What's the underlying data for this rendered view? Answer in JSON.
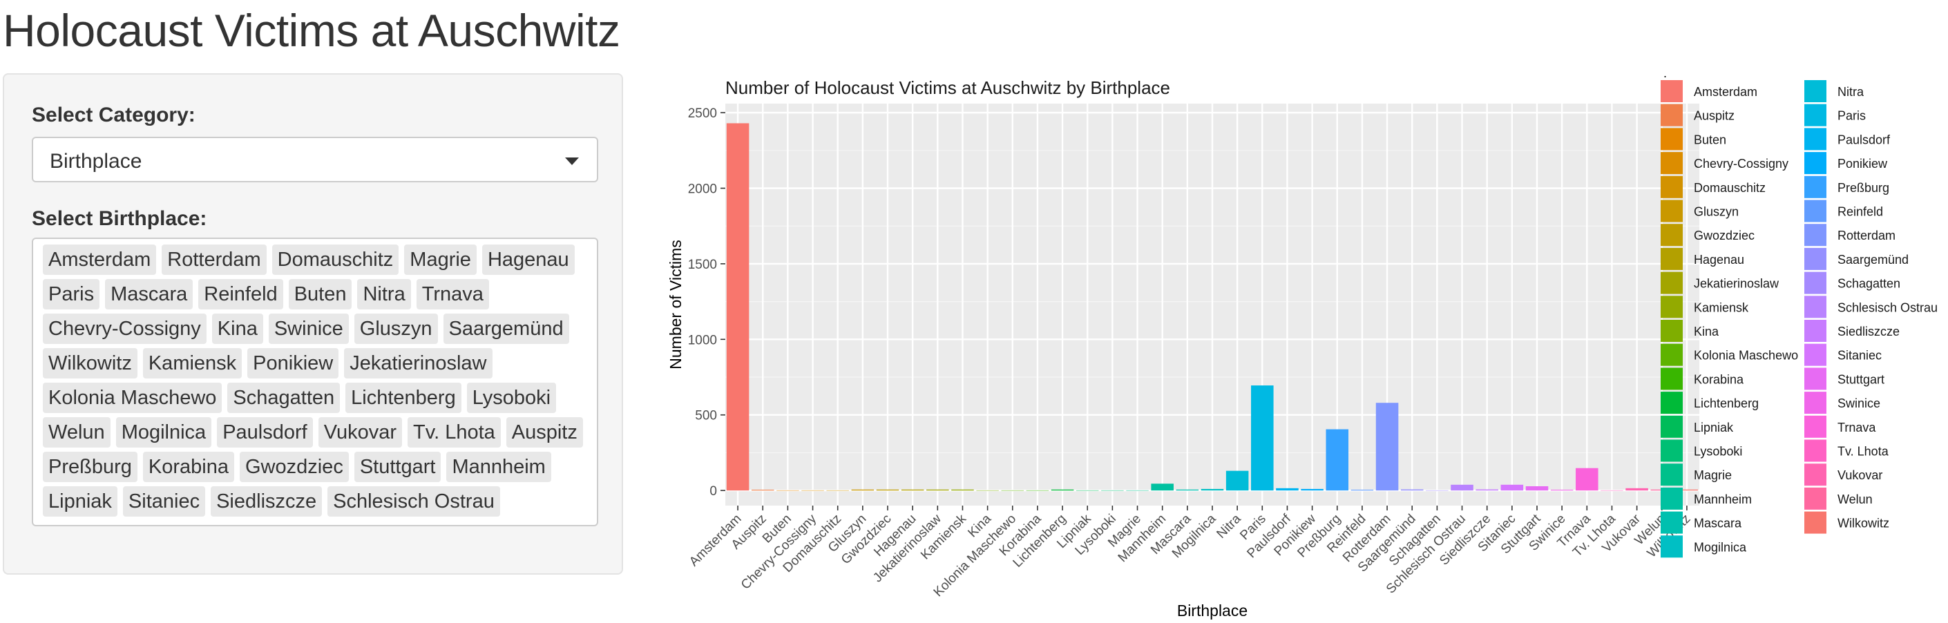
{
  "page": {
    "title": "Holocaust Victims at Auschwitz"
  },
  "sidebar": {
    "category_label": "Select Category:",
    "category_value": "Birthplace",
    "birthplace_label": "Select Birthplace:",
    "selected_birthplaces": [
      "Amsterdam",
      "Rotterdam",
      "Domauschitz",
      "Magrie",
      "Hagenau",
      "Paris",
      "Mascara",
      "Reinfeld",
      "Buten",
      "Nitra",
      "Trnava",
      "Chevry-Cossigny",
      "Kina",
      "Swinice",
      "Gluszyn",
      "Saargemünd",
      "Wilkowitz",
      "Kamiensk",
      "Ponikiew",
      "Jekatierinoslaw",
      "Kolonia Maschewo",
      "Schagatten",
      "Lichtenberg",
      "Lysoboki",
      "Welun",
      "Mogilnica",
      "Paulsdorf",
      "Vukovar",
      "Tv. Lhota",
      "Auspitz",
      "Preßburg",
      "Korabina",
      "Gwozdziec",
      "Stuttgart",
      "Mannheim",
      "Lipniak",
      "Sitaniec",
      "Siedliszcze",
      "Schlesisch Ostrau"
    ]
  },
  "chart_data": {
    "type": "bar",
    "title": "Number of Holocaust Victims at Auschwitz by Birthplace",
    "xlabel": "Birthplace",
    "ylabel": "Number of Victims",
    "ylim": [
      -100,
      2560
    ],
    "yticks": [
      0,
      500,
      1000,
      1500,
      2000,
      2500
    ],
    "legend_title": ".",
    "legend_position": "right",
    "categories": [
      "Amsterdam",
      "Auspitz",
      "Buten",
      "Chevry-Cossigny",
      "Domauschitz",
      "Gluszyn",
      "Gwozdziec",
      "Hagenau",
      "Jekatierinoslaw",
      "Kamiensk",
      "Kina",
      "Kolonia Maschewo",
      "Korabina",
      "Lichtenberg",
      "Lipniak",
      "Lysoboki",
      "Magrie",
      "Mannheim",
      "Mascara",
      "Mogilnica",
      "Nitra",
      "Paris",
      "Paulsdorf",
      "Ponikiew",
      "Preßburg",
      "Reinfeld",
      "Rotterdam",
      "Saargemünd",
      "Schagatten",
      "Schlesisch Ostrau",
      "Siedliszcze",
      "Sitaniec",
      "Stuttgart",
      "Swinice",
      "Trnava",
      "Tv. Lhota",
      "Vukovar",
      "Welun",
      "Wilkowitz"
    ],
    "values": [
      2430,
      5,
      1,
      1,
      1,
      6,
      6,
      6,
      6,
      6,
      1,
      1,
      1,
      6,
      1,
      1,
      1,
      45,
      6,
      10,
      130,
      695,
      15,
      10,
      405,
      5,
      580,
      7,
      1,
      38,
      7,
      38,
      28,
      5,
      148,
      1,
      15,
      6,
      6
    ],
    "colors": [
      "#F8766D",
      "#F07F49",
      "#E58700",
      "#DC8D00",
      "#D29200",
      "#C99800",
      "#BE9C00",
      "#B3A000",
      "#A3A500",
      "#93AA00",
      "#7FAE00",
      "#5EB300",
      "#39B600",
      "#00BA38",
      "#00BC59",
      "#00BF74",
      "#00C08B",
      "#00C1A0",
      "#00C0AF",
      "#00BFC4",
      "#00BCD8",
      "#00B9E3",
      "#00B4F0",
      "#00ADFA",
      "#35A2FF",
      "#619CFF",
      "#7F96FF",
      "#9590FF",
      "#A58AFF",
      "#B983FF",
      "#C77CFF",
      "#D575FE",
      "#E76BF3",
      "#F066EA",
      "#FA62DB",
      "#FF61C3",
      "#FF64B0",
      "#FF689F",
      "#F8766D"
    ]
  }
}
